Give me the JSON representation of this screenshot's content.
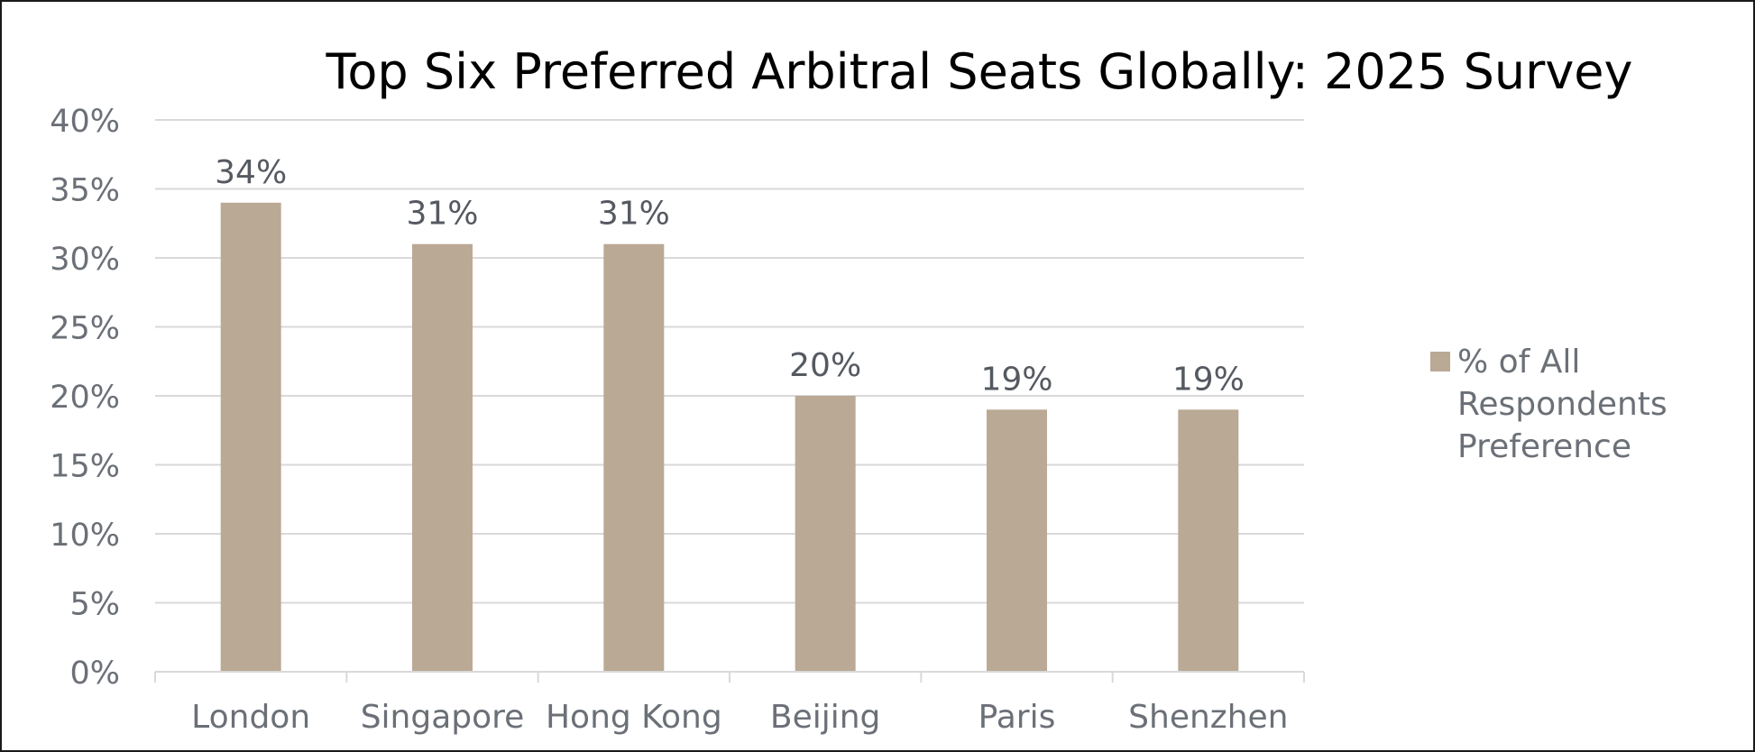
{
  "chart_data": {
    "type": "bar",
    "title": "Top Six Preferred Arbitral Seats Globally: 2025 Survey",
    "categories": [
      "London",
      "Singapore",
      "Hong Kong",
      "Beijing",
      "Paris",
      "Shenzhen"
    ],
    "series": [
      {
        "name": "% of All Respondents Preference",
        "values": [
          34,
          31,
          31,
          20,
          19,
          19
        ],
        "labels": [
          "34%",
          "31%",
          "31%",
          "20%",
          "19%",
          "19%"
        ],
        "color": "#baa995"
      }
    ],
    "ylim": [
      0,
      40
    ],
    "yticks": [
      {
        "value": 0,
        "label": "0%"
      },
      {
        "value": 5,
        "label": "5%"
      },
      {
        "value": 10,
        "label": "10%"
      },
      {
        "value": 15,
        "label": "15%"
      },
      {
        "value": 20,
        "label": "20%"
      },
      {
        "value": 25,
        "label": "25%"
      },
      {
        "value": 30,
        "label": "30%"
      },
      {
        "value": 35,
        "label": "35%"
      },
      {
        "value": 40,
        "label": "40%"
      }
    ],
    "legend": {
      "position": "right",
      "lines": [
        "% of All",
        "Respondents",
        "Preference"
      ]
    },
    "grid": true,
    "colors": {
      "bar": "#baa995",
      "grid": "#d9d9d9",
      "axis_text": "#6b7077"
    }
  }
}
